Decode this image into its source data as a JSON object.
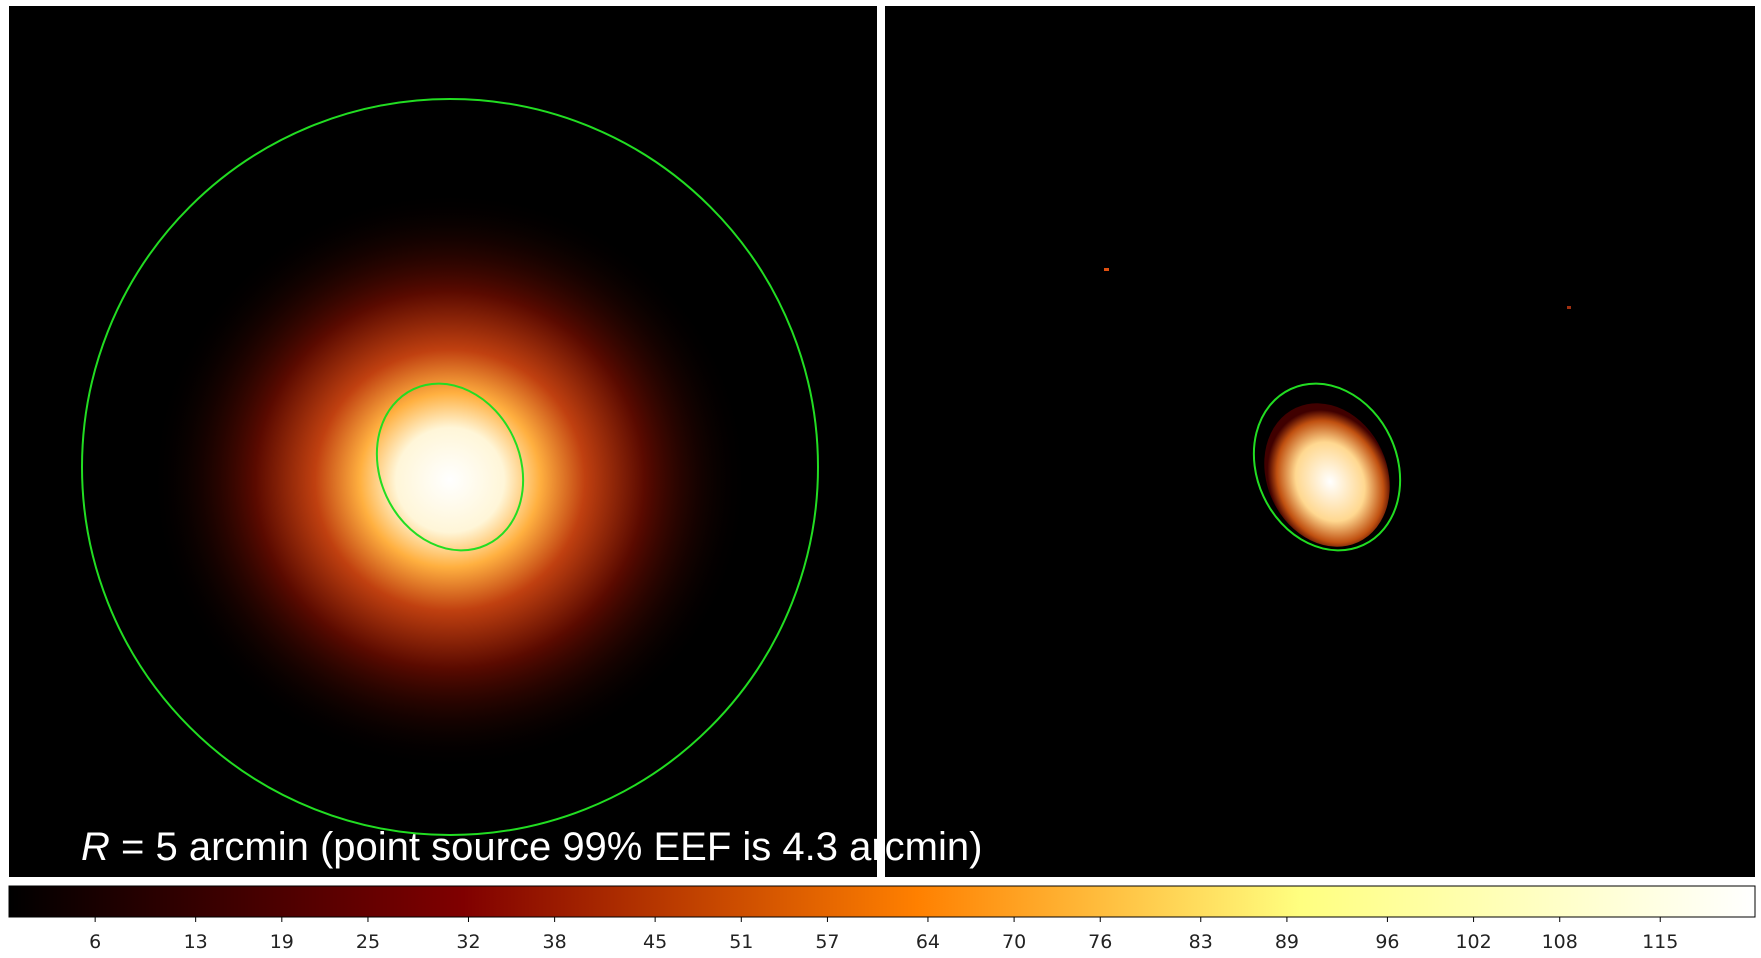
{
  "caption": {
    "variable": "R",
    "text": " = 5 arcmin (point source 99% EEF is 4.3 arcmin)"
  },
  "colorbar": {
    "lim": [
      0,
      121.6
    ],
    "ticks": [
      6,
      13,
      19,
      25,
      32,
      38,
      45,
      51,
      57,
      64,
      70,
      76,
      83,
      89,
      96,
      102,
      108,
      115
    ]
  }
}
